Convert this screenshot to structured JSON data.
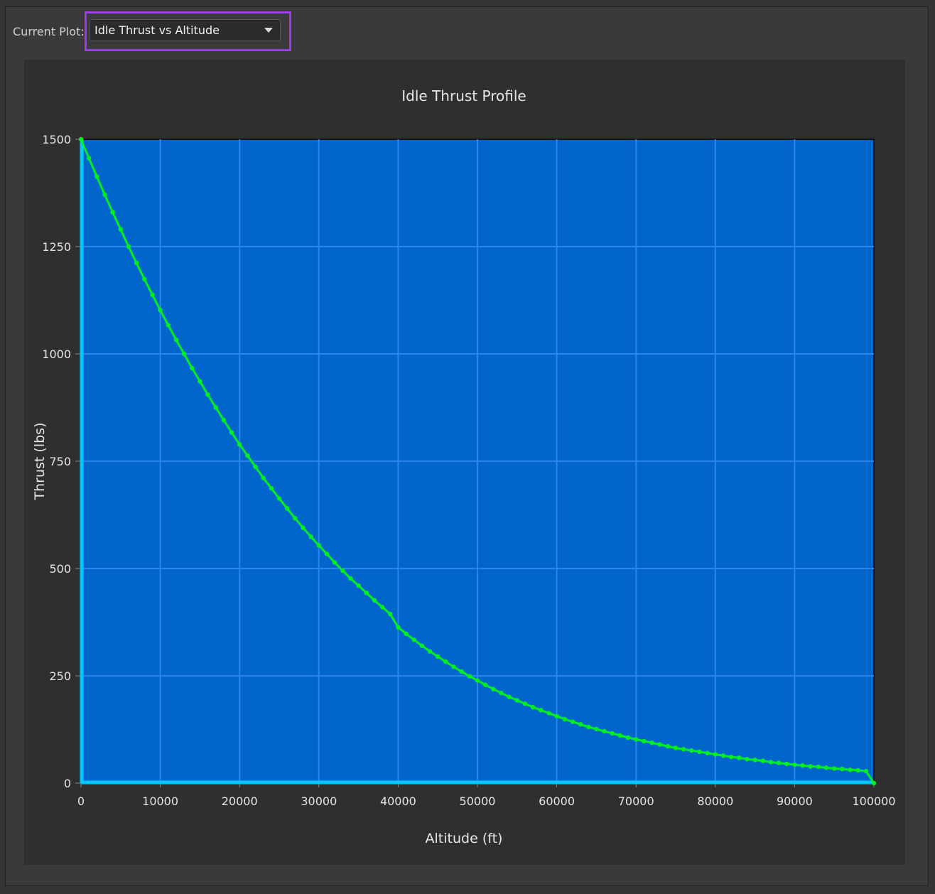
{
  "header": {
    "current_plot_label": "Current Plot:",
    "current_plot_value": "Idle Thrust vs Altitude"
  },
  "colors": {
    "plot_background": "#0066cc",
    "grid": "#2a86e8",
    "axis": "#00c8ff",
    "series": "#00ee22",
    "highlight": "#9b3cf0"
  },
  "chart_data": {
    "type": "line",
    "title": "Idle Thrust Profile",
    "xlabel": "Altitude (ft)",
    "ylabel": "Thrust (lbs)",
    "xlim": [
      0,
      100000
    ],
    "ylim": [
      0,
      1500
    ],
    "x_ticks": [
      "0",
      "10000",
      "20000",
      "30000",
      "40000",
      "50000",
      "60000",
      "70000",
      "80000",
      "90000",
      "100000"
    ],
    "y_ticks": [
      "0",
      "250",
      "500",
      "750",
      "1000",
      "1250",
      "1500"
    ],
    "grid": true,
    "markers": true,
    "series": [
      {
        "x": [
          0,
          1000,
          2000,
          3000,
          4000,
          5000,
          6000,
          7000,
          8000,
          9000,
          10000,
          11000,
          12000,
          13000,
          14000,
          15000,
          16000,
          17000,
          18000,
          19000,
          20000,
          21000,
          22000,
          23000,
          24000,
          25000,
          26000,
          27000,
          28000,
          29000,
          30000,
          31000,
          32000,
          33000,
          34000,
          35000,
          36000,
          37000,
          38000,
          39000,
          40000,
          41000,
          42000,
          43000,
          44000,
          45000,
          46000,
          47000,
          48000,
          49000,
          50000,
          51000,
          52000,
          53000,
          54000,
          55000,
          56000,
          57000,
          58000,
          59000,
          60000,
          61000,
          62000,
          63000,
          64000,
          65000,
          66000,
          67000,
          68000,
          69000,
          70000,
          71000,
          72000,
          73000,
          74000,
          75000,
          76000,
          77000,
          78000,
          79000,
          80000,
          81000,
          82000,
          83000,
          84000,
          85000,
          86000,
          87000,
          88000,
          89000,
          90000,
          91000,
          92000,
          93000,
          94000,
          95000,
          96000,
          97000,
          98000,
          99000,
          100000
        ],
        "y": [
          1500,
          1456,
          1413,
          1371,
          1330,
          1290,
          1250,
          1212,
          1174,
          1138,
          1102,
          1067,
          1033,
          1000,
          967,
          936,
          905,
          875,
          846,
          817,
          789,
          763,
          737,
          711,
          687,
          663,
          640,
          617,
          595,
          574,
          554,
          534,
          514,
          495,
          477,
          460,
          443,
          426,
          410,
          394,
          363,
          348,
          334,
          320,
          307,
          295,
          283,
          271,
          260,
          249,
          239,
          229,
          219,
          210,
          201,
          193,
          185,
          177,
          170,
          163,
          156,
          149,
          143,
          137,
          131,
          126,
          121,
          116,
          111,
          106,
          102,
          98,
          94,
          90,
          86,
          82,
          79,
          76,
          73,
          70,
          67,
          64,
          61,
          59,
          56,
          54,
          52,
          49,
          47,
          45,
          43,
          41,
          39,
          38,
          36,
          34,
          33,
          31,
          30,
          28,
          0
        ]
      }
    ]
  }
}
